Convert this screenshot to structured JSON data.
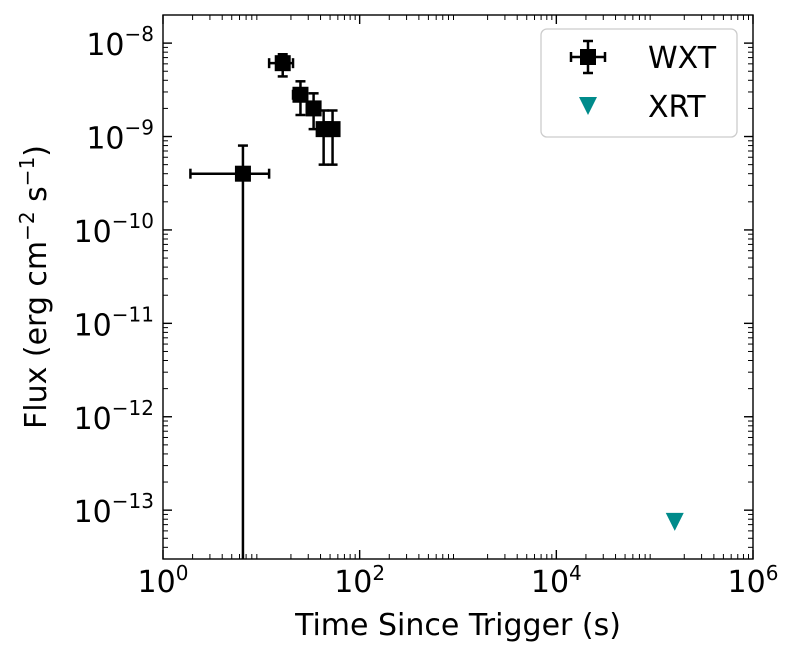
{
  "chart_data": {
    "type": "scatter",
    "xlabel": "Time Since Trigger (s)",
    "ylabel_main": "Flux (erg cm",
    "ylabel_exp1": "−2",
    "ylabel_mid": " s",
    "ylabel_exp2": "−1",
    "ylabel_end": ")",
    "x_scale": "log",
    "y_scale": "log",
    "xlim": [
      1,
      1000000
    ],
    "ylim": [
      3e-14,
      2e-08
    ],
    "x_ticks": [
      {
        "base": "10",
        "exp": "0",
        "value": 1
      },
      {
        "base": "10",
        "exp": "2",
        "value": 100
      },
      {
        "base": "10",
        "exp": "4",
        "value": 10000
      },
      {
        "base": "10",
        "exp": "6",
        "value": 1000000
      }
    ],
    "y_ticks": [
      {
        "base": "10",
        "exp": "−8",
        "value": 1e-08
      },
      {
        "base": "10",
        "exp": "−9",
        "value": 1e-09
      },
      {
        "base": "10",
        "exp": "−10",
        "value": 1e-10
      },
      {
        "base": "10",
        "exp": "−11",
        "value": 1e-11
      },
      {
        "base": "10",
        "exp": "−12",
        "value": 1e-12
      },
      {
        "base": "10",
        "exp": "−13",
        "value": 1e-13
      }
    ],
    "grid": false,
    "legend_position": "top-right",
    "series": [
      {
        "name": "WXT",
        "color": "#000000",
        "marker": "square",
        "points": [
          {
            "x": 6.5,
            "y": 4e-10,
            "x_lo": 1.9,
            "x_hi": 12,
            "y_lo": 3e-14,
            "y_hi": 8e-10
          },
          {
            "x": 16.5,
            "y": 6.1e-09,
            "x_lo": 12,
            "x_hi": 21,
            "y_lo": 4.4e-09,
            "y_hi": 7.6e-09
          },
          {
            "x": 25,
            "y": 2.8e-09,
            "x_lo": 21,
            "x_hi": 29,
            "y_lo": 1.7e-09,
            "y_hi": 3.9e-09
          },
          {
            "x": 34,
            "y": 2e-09,
            "x_lo": 29,
            "x_hi": 39,
            "y_lo": 1.2e-09,
            "y_hi": 2.9e-09
          },
          {
            "x": 43,
            "y": 1.2e-09,
            "x_lo": 39,
            "x_hi": 47,
            "y_lo": 5e-10,
            "y_hi": 1.9e-09
          },
          {
            "x": 53,
            "y": 1.2e-09,
            "x_lo": 47,
            "x_hi": 59,
            "y_lo": 5e-10,
            "y_hi": 1.9e-09
          }
        ]
      },
      {
        "name": "XRT",
        "color": "#008b8b",
        "marker": "triangle-down",
        "points": [
          {
            "x": 160000,
            "y": 7.5e-14
          }
        ]
      }
    ]
  }
}
